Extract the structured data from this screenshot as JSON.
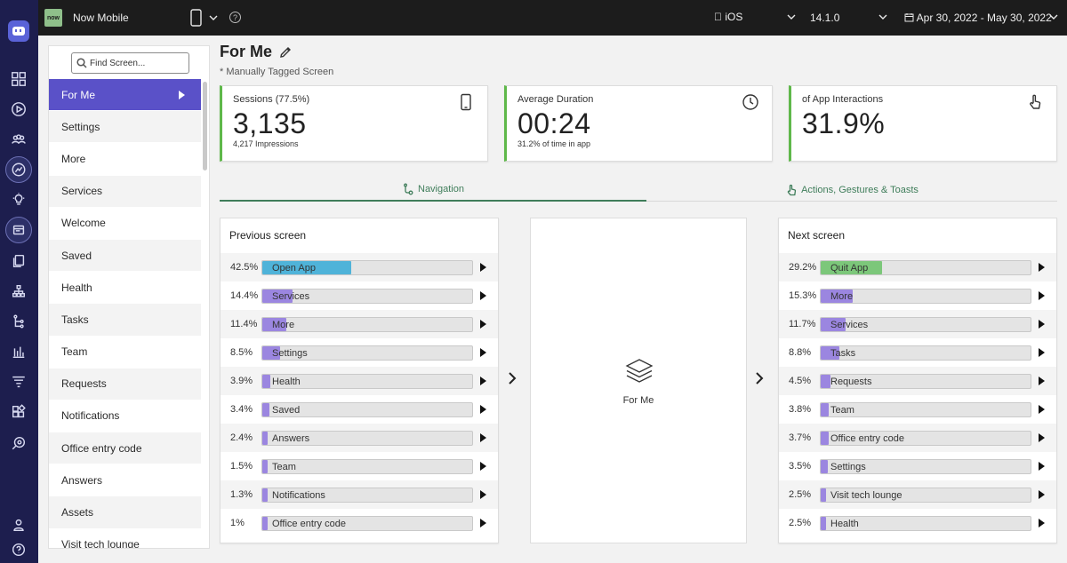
{
  "topbar": {
    "brand_logo": "now",
    "app_name": "Now Mobile",
    "device_icon": "phone-icon",
    "os": "iOS",
    "version": "14.1.0",
    "date_range": "Apr 30, 2022 - May 30, 2022"
  },
  "rail_icons": [
    "app-logo-icon",
    "dashboard-icon",
    "play-icon",
    "users-icon",
    "analytics-icon",
    "lightbulb-icon",
    "screens-icon",
    "copy-icon",
    "hierarchy-icon",
    "journey-icon",
    "bar-chart-icon",
    "funnel-icon",
    "widgets-icon",
    "search-eye-icon",
    "user-icon",
    "help-icon"
  ],
  "sidebar": {
    "search_placeholder": "Find Screen...",
    "items": [
      "For Me",
      "Settings",
      "More",
      "Services",
      "Welcome",
      "Saved",
      "Health",
      "Tasks",
      "Team",
      "Requests",
      "Notifications",
      "Office entry code",
      "Answers",
      "Assets",
      "Visit tech lounge"
    ],
    "active_index": 0
  },
  "page": {
    "title": "For Me",
    "subtitle": "* Manually Tagged Screen"
  },
  "cards": [
    {
      "label": "Sessions (77.5%)",
      "value": "3,135",
      "sub": "4,217 Impressions",
      "icon": "phone-icon"
    },
    {
      "label": "Average Duration",
      "value": "00:24",
      "sub": "31.2% of time in app",
      "icon": "clock-icon"
    },
    {
      "label": "of App Interactions",
      "value": "31.9%",
      "sub": "",
      "icon": "tap-hand-icon"
    }
  ],
  "tabs": [
    {
      "label": "Navigation",
      "icon": "navigation-path-icon",
      "active": true
    },
    {
      "label": "Actions, Gestures & Toasts",
      "icon": "gesture-hand-icon",
      "active": false
    }
  ],
  "previous": {
    "title": "Previous screen",
    "rows": [
      {
        "pct": "42.5%",
        "value": 42.5,
        "label": "Open App",
        "color": "#4fb3d9"
      },
      {
        "pct": "14.4%",
        "value": 14.4,
        "label": "Services",
        "color": "#9b86e0"
      },
      {
        "pct": "11.4%",
        "value": 11.4,
        "label": "More",
        "color": "#9b86e0"
      },
      {
        "pct": "8.5%",
        "value": 8.5,
        "label": "Settings",
        "color": "#9b86e0"
      },
      {
        "pct": "3.9%",
        "value": 3.9,
        "label": "Health",
        "color": "#9b86e0"
      },
      {
        "pct": "3.4%",
        "value": 3.4,
        "label": "Saved",
        "color": "#9b86e0"
      },
      {
        "pct": "2.4%",
        "value": 2.4,
        "label": "Answers",
        "color": "#9b86e0"
      },
      {
        "pct": "1.5%",
        "value": 1.5,
        "label": "Team",
        "color": "#9b86e0"
      },
      {
        "pct": "1.3%",
        "value": 1.3,
        "label": "Notifications",
        "color": "#9b86e0"
      },
      {
        "pct": "1%",
        "value": 1.0,
        "label": "Office entry code",
        "color": "#9b86e0"
      }
    ]
  },
  "current": {
    "name": "For Me",
    "icon": "layers-icon"
  },
  "next": {
    "title": "Next screen",
    "rows": [
      {
        "pct": "29.2%",
        "value": 29.2,
        "label": "Quit App",
        "color": "#7cc77a"
      },
      {
        "pct": "15.3%",
        "value": 15.3,
        "label": "More",
        "color": "#9b86e0"
      },
      {
        "pct": "11.7%",
        "value": 11.7,
        "label": "Services",
        "color": "#9b86e0"
      },
      {
        "pct": "8.8%",
        "value": 8.8,
        "label": "Tasks",
        "color": "#9b86e0"
      },
      {
        "pct": "4.5%",
        "value": 4.5,
        "label": "Requests",
        "color": "#9b86e0"
      },
      {
        "pct": "3.8%",
        "value": 3.8,
        "label": "Team",
        "color": "#9b86e0"
      },
      {
        "pct": "3.7%",
        "value": 3.7,
        "label": "Office entry code",
        "color": "#9b86e0"
      },
      {
        "pct": "3.5%",
        "value": 3.5,
        "label": "Settings",
        "color": "#9b86e0"
      },
      {
        "pct": "2.5%",
        "value": 2.5,
        "label": "Visit tech lounge",
        "color": "#9b86e0"
      },
      {
        "pct": "2.5%",
        "value": 2.5,
        "label": "Health",
        "color": "#9b86e0"
      }
    ]
  }
}
